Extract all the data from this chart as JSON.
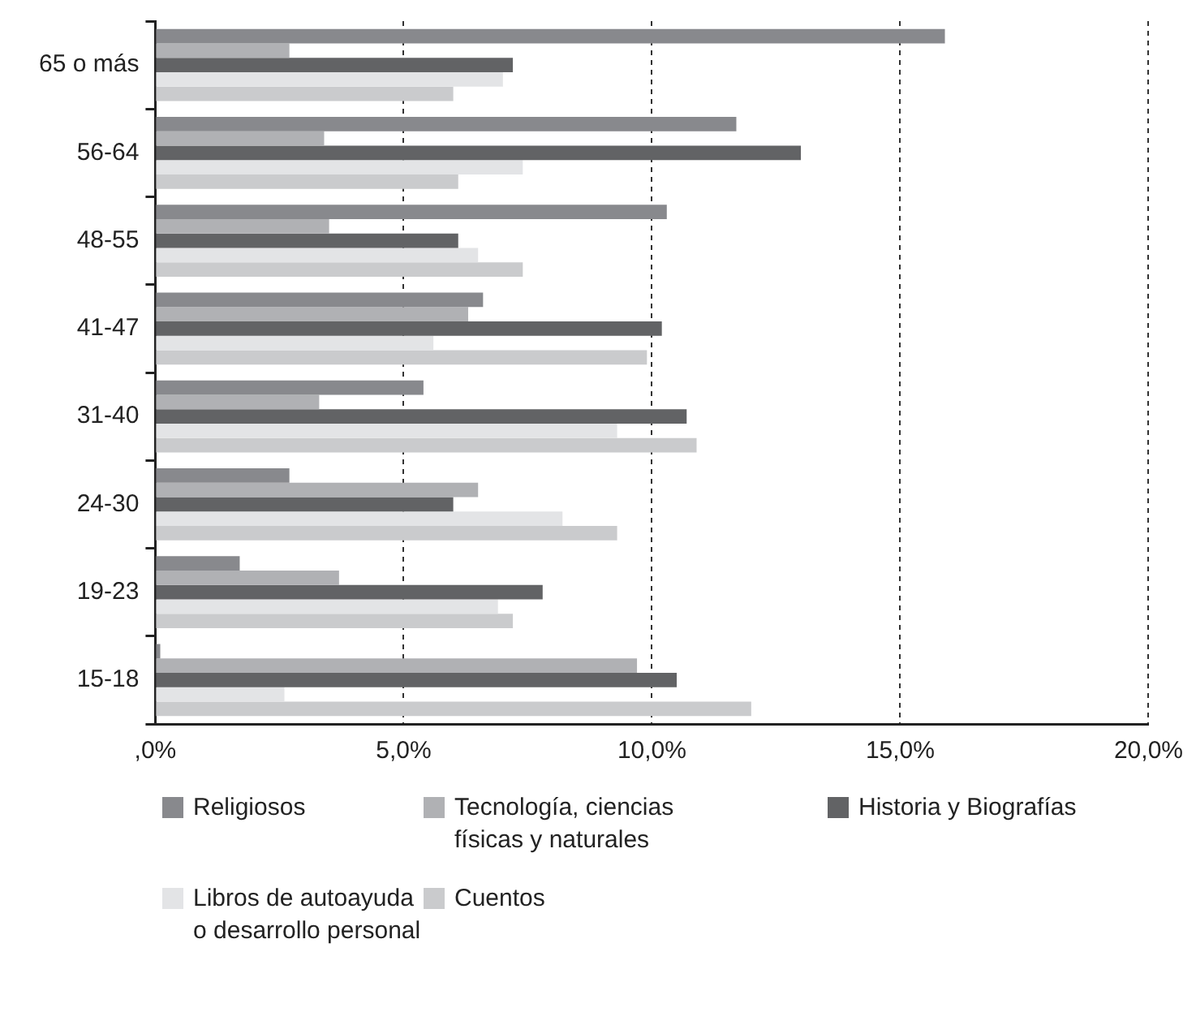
{
  "chart_data": {
    "type": "bar",
    "orientation": "horizontal",
    "categories": [
      "65 o más",
      "56-64",
      "48-55",
      "41-47",
      "31-40",
      "24-30",
      "19-23",
      "15-18"
    ],
    "series": [
      {
        "name": "Religiosos",
        "color": "#88898d",
        "values": [
          15.9,
          11.7,
          10.3,
          6.6,
          5.4,
          2.7,
          1.7,
          0.1
        ]
      },
      {
        "name": "Tecnología, ciencias físicas y naturales",
        "color": "#b0b1b4",
        "values": [
          2.7,
          3.4,
          3.5,
          6.3,
          3.3,
          6.5,
          3.7,
          9.7
        ]
      },
      {
        "name": "Historia y Biografías",
        "color": "#626365",
        "values": [
          7.2,
          13.0,
          6.1,
          10.2,
          10.7,
          6.0,
          7.8,
          10.5
        ]
      },
      {
        "name": "Libros de autoayuda o desarrollo personal",
        "color": "#e3e4e6",
        "values": [
          7.0,
          7.4,
          6.5,
          5.6,
          9.3,
          8.2,
          6.9,
          2.6
        ]
      },
      {
        "name": "Cuentos",
        "color": "#cacbcd",
        "values": [
          6.0,
          6.1,
          7.4,
          9.9,
          10.9,
          9.3,
          7.2,
          12.0
        ]
      }
    ],
    "xlim": [
      0,
      20
    ],
    "xticks": [
      {
        "value": 0,
        "label": ",0%"
      },
      {
        "value": 5,
        "label": "5,0%"
      },
      {
        "value": 10,
        "label": "10,0%"
      },
      {
        "value": 15,
        "label": "15,0%"
      },
      {
        "value": 20,
        "label": "20,0%"
      }
    ],
    "grid": "x",
    "legend": "bottom"
  }
}
